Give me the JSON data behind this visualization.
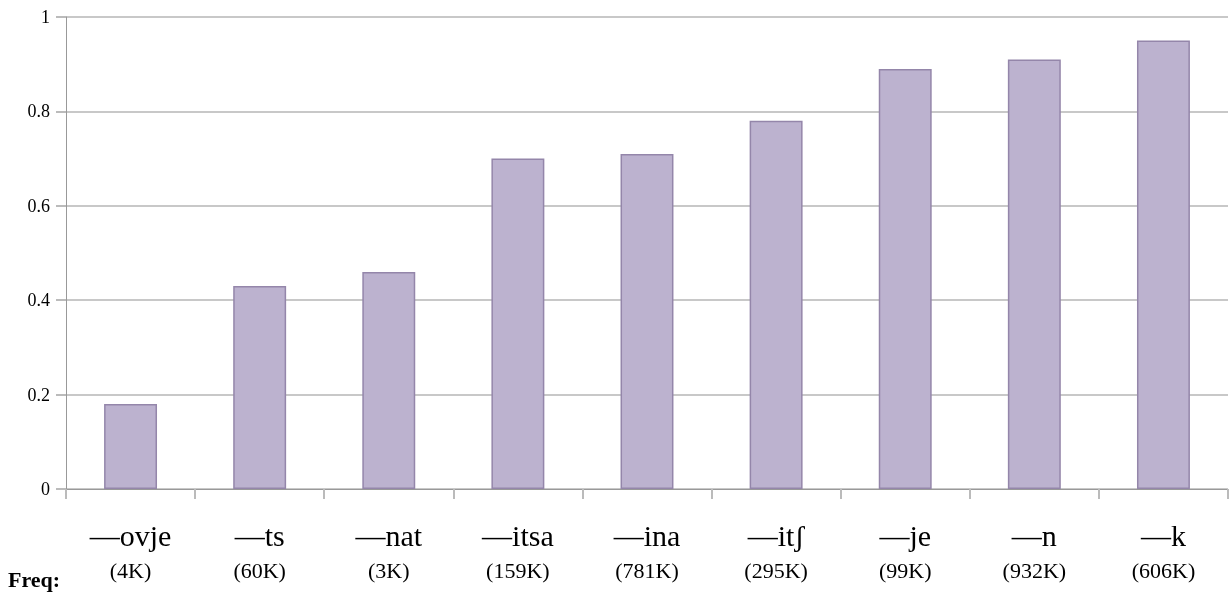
{
  "chart_data": {
    "type": "bar",
    "categories": [
      "—ovje\n(4K)",
      "—ts\n(60K)",
      "—nat\n(3K)",
      "—itsa\n(159K)",
      "—ina\n(781K)",
      "—itʃ\n(295K)",
      "—je\n(99K)",
      "—n\n(932K)",
      "—k\n(606K)"
    ],
    "values": [
      0.18,
      0.43,
      0.46,
      0.7,
      0.71,
      0.78,
      0.89,
      0.91,
      0.95
    ],
    "color": "#bcb2cf",
    "ylim": [
      0,
      1
    ],
    "yticks": [
      0,
      0.2,
      0.4,
      0.6,
      0.8,
      1
    ],
    "grid": "y",
    "annotations": [
      "Freq:"
    ]
  }
}
